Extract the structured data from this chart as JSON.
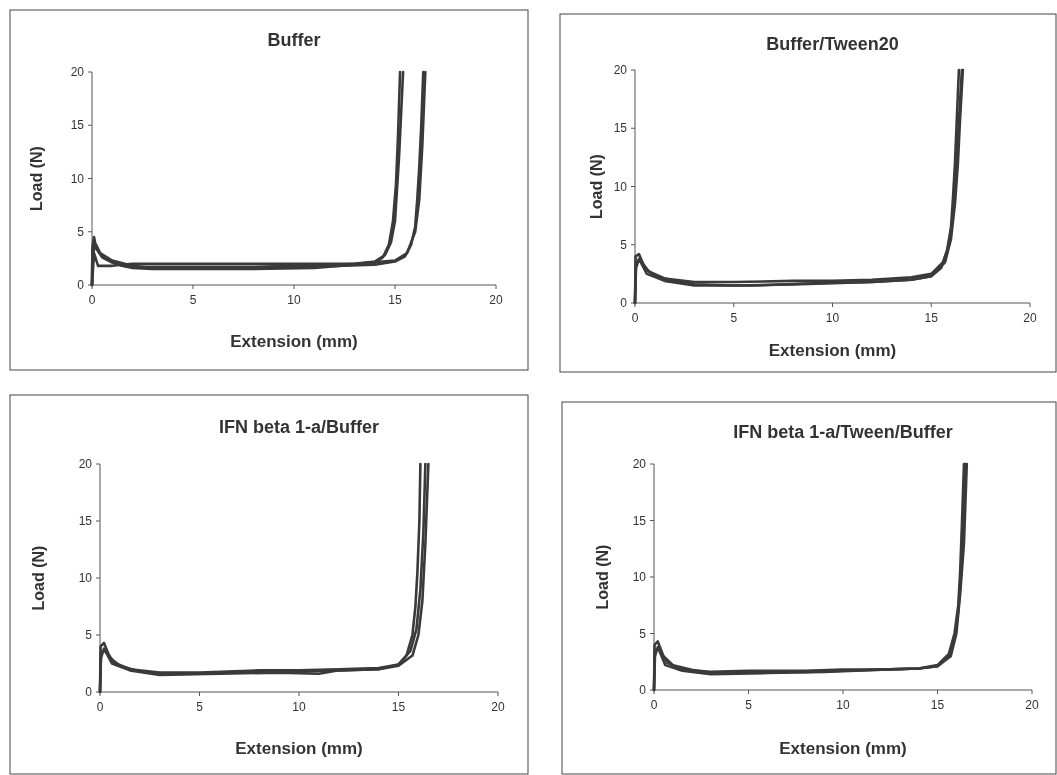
{
  "chart_data": [
    {
      "type": "line",
      "title": "Buffer",
      "xlabel": "Extension (mm)",
      "ylabel": "Load (N)",
      "xlim": [
        0,
        20
      ],
      "ylim": [
        0,
        20
      ],
      "xticks": [
        0,
        5,
        10,
        15,
        20
      ],
      "yticks": [
        0,
        5,
        10,
        15,
        20
      ],
      "series": [
        {
          "color": "#3a3a3a",
          "x": [
            0,
            0.02,
            0.1,
            0.2,
            0.5,
            1,
            1.5,
            2,
            3,
            5,
            8,
            10,
            12,
            13,
            14,
            14.5,
            14.8,
            15,
            15.1,
            15.2,
            15.3,
            15.4
          ],
          "values": [
            0,
            3.5,
            4.5,
            3.5,
            2.6,
            2.2,
            1.8,
            1.7,
            1.7,
            1.7,
            1.7,
            1.8,
            1.9,
            2.0,
            2.2,
            2.8,
            4,
            6,
            9,
            12,
            16,
            20
          ]
        },
        {
          "color": "#3a3a3a",
          "x": [
            0,
            0.02,
            0.1,
            0.3,
            0.6,
            1,
            1.5,
            2,
            3,
            5,
            8,
            11,
            13,
            14,
            14.4,
            14.7,
            14.9,
            15.05,
            15.15,
            15.25
          ],
          "values": [
            0,
            3,
            3.8,
            3.2,
            2.5,
            2.1,
            1.8,
            1.6,
            1.5,
            1.5,
            1.5,
            1.6,
            1.9,
            2.1,
            2.6,
            3.8,
            6,
            9.5,
            14,
            20
          ]
        },
        {
          "color": "#3a3a3a",
          "x": [
            0,
            0.05,
            0.2,
            0.4,
            1,
            2,
            3,
            5,
            8,
            10,
            12,
            14,
            15,
            15.5,
            15.8,
            16,
            16.1,
            16.2,
            16.3,
            16.4
          ],
          "values": [
            0,
            3,
            3.8,
            3,
            2.3,
            1.8,
            1.6,
            1.6,
            1.6,
            1.7,
            1.8,
            1.9,
            2.2,
            2.7,
            3.8,
            5.5,
            8,
            11,
            15,
            20
          ]
        },
        {
          "color": "#3a3a3a",
          "x": [
            0,
            0.1,
            0.3,
            1,
            2,
            5,
            10,
            13,
            15,
            15.6,
            16,
            16.2,
            16.35,
            16.5
          ],
          "values": [
            0,
            3,
            1.8,
            1.8,
            2.0,
            2.0,
            2.0,
            2.0,
            2.3,
            3,
            5,
            8,
            13,
            20
          ]
        }
      ]
    },
    {
      "type": "line",
      "title": "Buffer/Tween20",
      "xlabel": "Extension (mm)",
      "ylabel": "Load (N)",
      "xlim": [
        0,
        20
      ],
      "ylim": [
        0,
        20
      ],
      "xticks": [
        0,
        5,
        10,
        15,
        20
      ],
      "yticks": [
        0,
        5,
        10,
        15,
        20
      ],
      "series": [
        {
          "color": "#3a3a3a",
          "x": [
            0,
            0.03,
            0.2,
            0.5,
            1,
            2,
            3,
            5,
            8,
            10,
            12,
            14,
            15,
            15.5,
            15.8,
            16,
            16.1,
            16.2,
            16.3,
            16.4
          ],
          "values": [
            0,
            4,
            4.2,
            3,
            2.3,
            1.9,
            1.6,
            1.5,
            1.6,
            1.7,
            1.8,
            2.0,
            2.3,
            3,
            4.5,
            6.5,
            9,
            12,
            16,
            20
          ]
        },
        {
          "color": "#3a3a3a",
          "x": [
            0,
            0.05,
            0.3,
            0.7,
            1.5,
            3,
            5,
            8,
            10,
            12,
            14,
            15,
            15.6,
            15.9,
            16.1,
            16.25,
            16.35,
            16.45,
            16.55
          ],
          "values": [
            0,
            3.5,
            3.6,
            2.7,
            2.1,
            1.8,
            1.8,
            1.9,
            1.9,
            2.0,
            2.2,
            2.5,
            3.5,
            5,
            7.5,
            10.5,
            14,
            17,
            20
          ]
        },
        {
          "color": "#3a3a3a",
          "x": [
            0,
            0.05,
            0.2,
            0.6,
            1.5,
            3,
            6,
            9,
            12,
            14,
            15,
            15.7,
            16,
            16.2,
            16.35,
            16.45,
            16.6
          ],
          "values": [
            0,
            3,
            3.8,
            2.5,
            1.9,
            1.5,
            1.5,
            1.7,
            1.8,
            2.0,
            2.3,
            3.5,
            5.5,
            8.5,
            12,
            15.5,
            20
          ]
        }
      ]
    },
    {
      "type": "line",
      "title": "IFN beta 1-a/Buffer",
      "xlabel": "Extension (mm)",
      "ylabel": "Load (N)",
      "xlim": [
        0,
        20
      ],
      "ylim": [
        0,
        20
      ],
      "xticks": [
        0,
        5,
        10,
        15,
        20
      ],
      "yticks": [
        0,
        5,
        10,
        15,
        20
      ],
      "series": [
        {
          "color": "#3a3a3a",
          "x": [
            0,
            0.03,
            0.2,
            0.5,
            1,
            2,
            3,
            5,
            8,
            10,
            12,
            14,
            15,
            15.4,
            15.7,
            15.85,
            15.95,
            16.05,
            16.1
          ],
          "values": [
            0,
            4,
            4.3,
            3,
            2.3,
            1.8,
            1.6,
            1.6,
            1.8,
            1.8,
            1.9,
            2.0,
            2.4,
            3.2,
            5,
            7.5,
            10.5,
            15,
            20
          ]
        },
        {
          "color": "#3a3a3a",
          "x": [
            0,
            0.05,
            0.3,
            0.7,
            1.5,
            3,
            5,
            8,
            10,
            12,
            14,
            15,
            15.6,
            15.9,
            16.1,
            16.25,
            16.35
          ],
          "values": [
            0,
            3.5,
            3.6,
            2.6,
            2.0,
            1.7,
            1.7,
            1.9,
            1.9,
            2.0,
            2.1,
            2.4,
            3.6,
            5.5,
            9,
            14,
            20
          ]
        },
        {
          "color": "#3a3a3a",
          "x": [
            0,
            0.05,
            0.2,
            0.6,
            1.5,
            3,
            6,
            9,
            11,
            12,
            14,
            15,
            15.7,
            16,
            16.2,
            16.35,
            16.5
          ],
          "values": [
            0,
            3,
            3.8,
            2.5,
            1.9,
            1.5,
            1.6,
            1.7,
            1.6,
            1.9,
            2.0,
            2.3,
            3.2,
            5,
            8,
            13,
            20
          ]
        }
      ]
    },
    {
      "type": "line",
      "title": "IFN beta 1-a/Tween/Buffer",
      "xlabel": "Extension (mm)",
      "ylabel": "Load (N)",
      "xlim": [
        0,
        20
      ],
      "ylim": [
        0,
        20
      ],
      "xticks": [
        0,
        5,
        10,
        15,
        20
      ],
      "yticks": [
        0,
        5,
        10,
        15,
        20
      ],
      "series": [
        {
          "color": "#3a3a3a",
          "x": [
            0,
            0.03,
            0.2,
            0.5,
            1,
            2,
            3,
            5,
            8,
            10,
            12,
            14,
            15,
            15.6,
            15.9,
            16.1,
            16.2,
            16.3,
            16.4
          ],
          "values": [
            0,
            4,
            4.3,
            3,
            2.2,
            1.8,
            1.5,
            1.6,
            1.6,
            1.7,
            1.8,
            1.9,
            2.2,
            3.2,
            5,
            7.5,
            10.5,
            15,
            20
          ]
        },
        {
          "color": "#3a3a3a",
          "x": [
            0,
            0.05,
            0.3,
            0.7,
            1.5,
            3,
            5,
            8,
            10,
            12,
            14,
            15,
            15.6,
            15.9,
            16.1,
            16.25,
            16.35,
            16.5
          ],
          "values": [
            0,
            3.5,
            3.6,
            2.4,
            1.8,
            1.6,
            1.7,
            1.7,
            1.8,
            1.8,
            1.9,
            2.1,
            3,
            4.5,
            7,
            10.5,
            15,
            20
          ]
        },
        {
          "color": "#3a3a3a",
          "x": [
            0,
            0.05,
            0.2,
            0.6,
            1.5,
            3,
            6,
            9,
            12,
            14,
            15,
            15.7,
            16,
            16.2,
            16.4,
            16.55
          ],
          "values": [
            0,
            3,
            3.8,
            2.2,
            1.7,
            1.4,
            1.5,
            1.6,
            1.8,
            1.9,
            2.1,
            3,
            5,
            8.5,
            13,
            20
          ]
        }
      ]
    }
  ]
}
